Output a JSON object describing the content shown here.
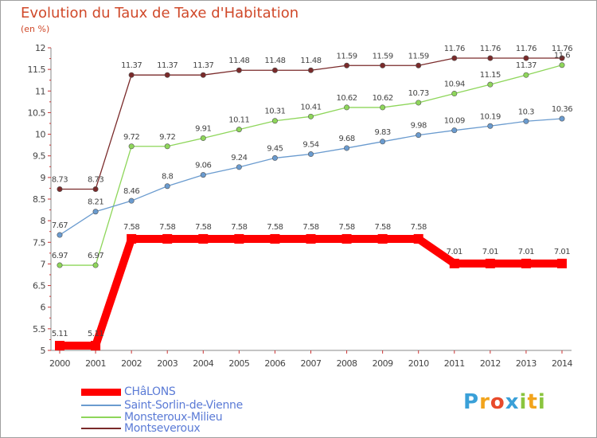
{
  "chart_data": {
    "type": "line",
    "title": "Evolution du Taux de Taxe d'Habitation",
    "subtitle": "(en %)",
    "x": [
      "2000",
      "2001",
      "2002",
      "2003",
      "2004",
      "2005",
      "2006",
      "2007",
      "2008",
      "2009",
      "2010",
      "2011",
      "2012",
      "2013",
      "2014"
    ],
    "ylim": [
      5,
      12
    ],
    "yticks": [
      "5",
      "5.5",
      "6",
      "6.5",
      "7",
      "7.5",
      "8",
      "8.5",
      "9",
      "9.5",
      "10",
      "10.5",
      "11",
      "11.5",
      "12"
    ],
    "grid": false,
    "legend_position": "bottom-left",
    "series": [
      {
        "name": "CHâLONS",
        "color": "#ff0000",
        "values": [
          5.11,
          5.11,
          7.58,
          7.58,
          7.58,
          7.58,
          7.58,
          7.58,
          7.58,
          7.58,
          7.58,
          7.01,
          7.01,
          7.01,
          7.01
        ],
        "labels": [
          "5.11",
          "5.11",
          "7.58",
          "7.58",
          "7.58",
          "7.58",
          "7.58",
          "7.58",
          "7.58",
          "7.58",
          "7.58",
          "7.01",
          "7.01",
          "7.01",
          "7.01"
        ]
      },
      {
        "name": "Saint-Sorlin-de-Vienne",
        "color": "#6a9bcf",
        "values": [
          7.67,
          8.21,
          8.46,
          8.8,
          9.06,
          9.24,
          9.45,
          9.54,
          9.68,
          9.83,
          9.98,
          10.09,
          10.19,
          10.3,
          10.36
        ],
        "labels": [
          "7.67",
          "8.21",
          "8.46",
          "8.8",
          "9.06",
          "9.24",
          "9.45",
          "9.54",
          "9.68",
          "9.83",
          "9.98",
          "10.09",
          "10.19",
          "10.3",
          "10.36"
        ]
      },
      {
        "name": "Monsteroux-Milieu",
        "color": "#8ed65a",
        "values": [
          6.97,
          6.97,
          9.72,
          9.72,
          9.91,
          10.11,
          10.31,
          10.41,
          10.62,
          10.62,
          10.73,
          10.94,
          11.15,
          11.37,
          11.6
        ],
        "labels": [
          "6.97",
          "6.97",
          "9.72",
          "9.72",
          "9.91",
          "10.11",
          "10.31",
          "10.41",
          "10.62",
          "10.62",
          "10.73",
          "10.94",
          "11.15",
          "11.37",
          "11.6"
        ]
      },
      {
        "name": "Montseveroux",
        "color": "#7a2a2a",
        "values": [
          8.73,
          8.73,
          11.37,
          11.37,
          11.37,
          11.48,
          11.48,
          11.48,
          11.59,
          11.59,
          11.59,
          11.76,
          11.76,
          11.76,
          11.76
        ],
        "labels": [
          "8.73",
          "8.73",
          "11.37",
          "11.37",
          "11.37",
          "11.48",
          "11.48",
          "11.48",
          "11.59",
          "11.59",
          "11.59",
          "11.76",
          "11.76",
          "11.76",
          "11.76"
        ]
      }
    ]
  },
  "brand": {
    "letters": [
      "P",
      "r",
      "o",
      "x",
      "i",
      "t",
      "i"
    ],
    "colors": [
      "#3aa0d8",
      "#f2a41c",
      "#e84a2b",
      "#3aa0d8",
      "#8bc53f",
      "#f2a41c",
      "#8bc53f"
    ]
  }
}
